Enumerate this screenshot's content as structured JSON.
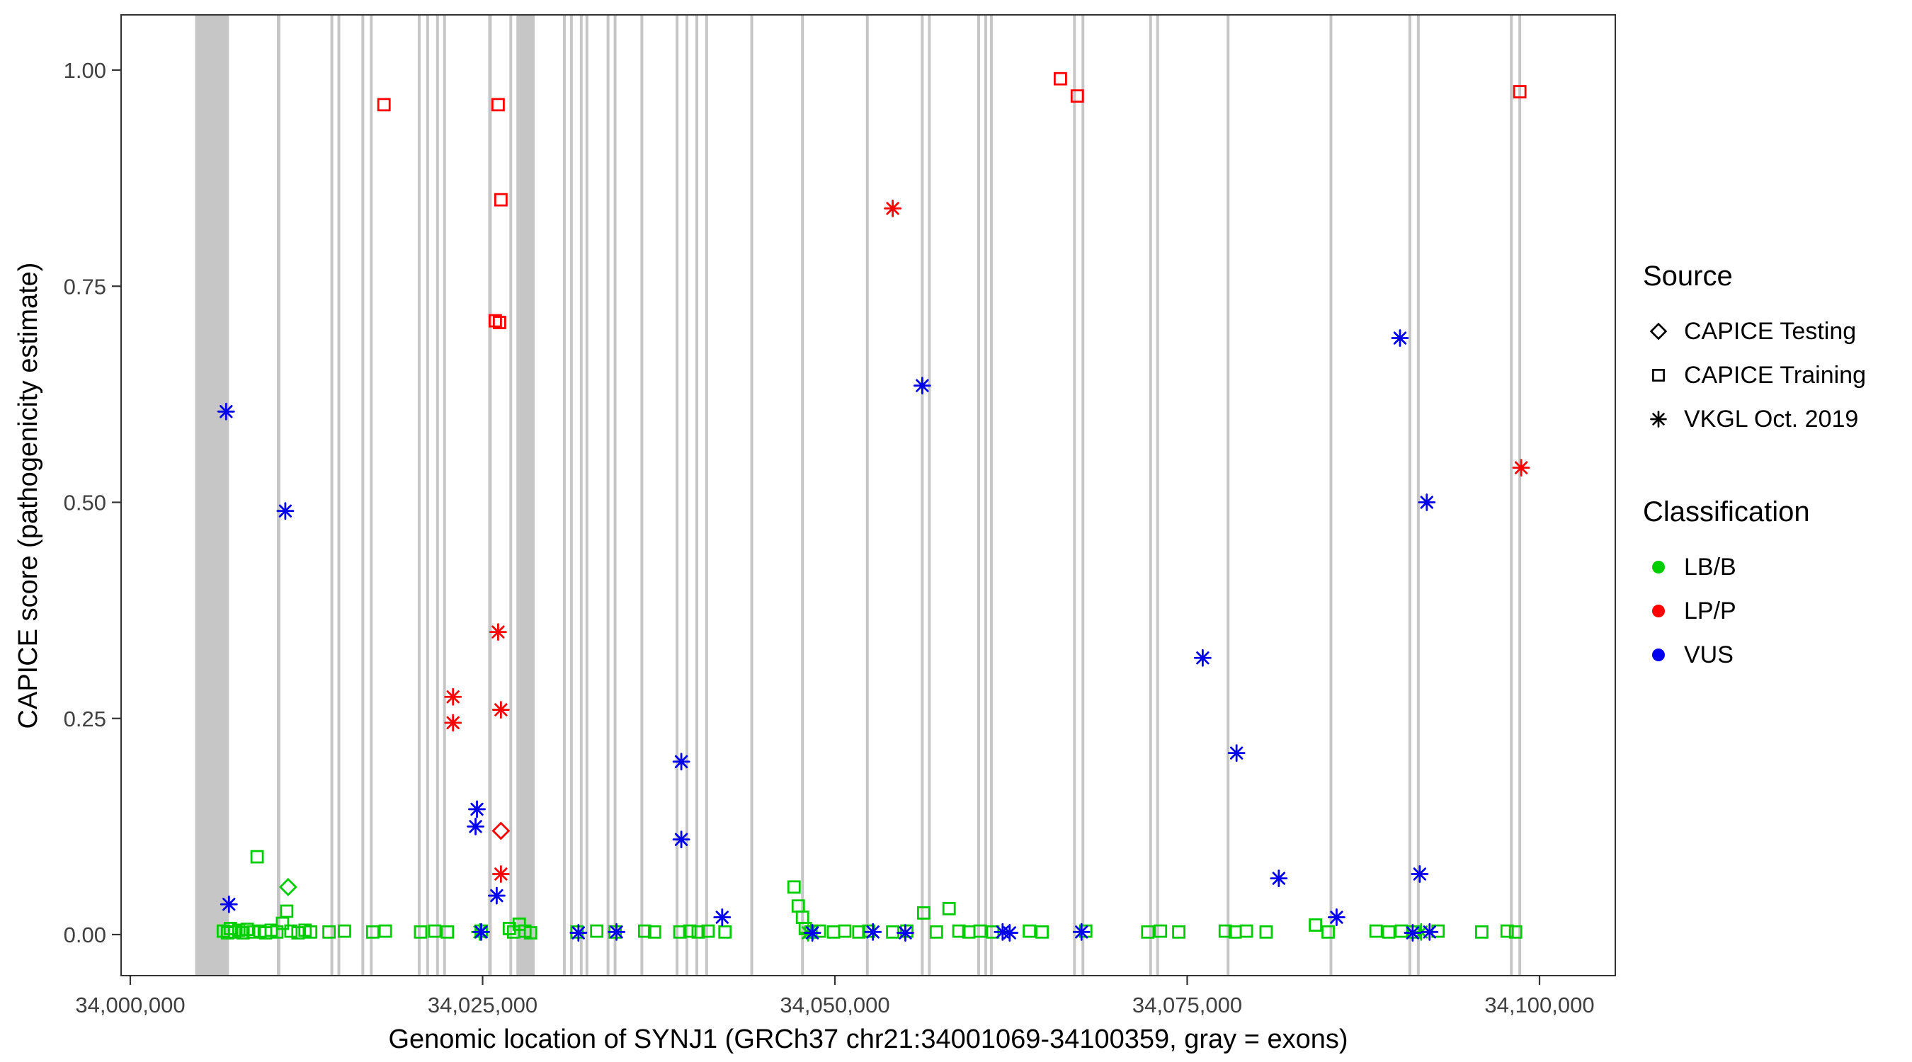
{
  "chart_data": {
    "type": "scatter",
    "title": "",
    "xlabel": "Genomic location of SYNJ1 (GRCh37 chr21:34001069-34100359, gray = exons)",
    "ylabel": "CAPICE score (pathogenicity estimate)",
    "xlim": [
      33999300,
      34105400
    ],
    "ylim": [
      -0.05,
      1.06
    ],
    "x_ticks": [
      34000000,
      34025000,
      34050000,
      34075000,
      34100000
    ],
    "x_tick_labels": [
      "34,000,000",
      "34,025,000",
      "34,050,000",
      "34,075,000",
      "34,100,000"
    ],
    "y_ticks": [
      0,
      0.25,
      0.5,
      0.75,
      1.0
    ],
    "y_tick_labels": [
      "0.00",
      "0.25",
      "0.50",
      "0.75",
      "1.00"
    ],
    "grid": false,
    "legend_position": "right",
    "exon_color": "#c6c6c6",
    "exons": [
      [
        34004600,
        34007000
      ],
      [
        34010400,
        34010650
      ],
      [
        34014200,
        34014400
      ],
      [
        34014700,
        34014900
      ],
      [
        34016400,
        34016600
      ],
      [
        34017000,
        34017200
      ],
      [
        34020400,
        34020600
      ],
      [
        34021000,
        34021200
      ],
      [
        34021700,
        34021900
      ],
      [
        34022200,
        34022400
      ],
      [
        34025400,
        34025650
      ],
      [
        34026900,
        34027100
      ],
      [
        34027400,
        34028700
      ],
      [
        34030700,
        34030900
      ],
      [
        34031200,
        34031400
      ],
      [
        34031900,
        34032100
      ],
      [
        34032300,
        34032500
      ],
      [
        34033800,
        34034000
      ],
      [
        34034300,
        34034500
      ],
      [
        34036200,
        34036400
      ],
      [
        34038700,
        34038900
      ],
      [
        34039400,
        34039600
      ],
      [
        34040100,
        34040300
      ],
      [
        34040800,
        34041000
      ],
      [
        34044000,
        34044200
      ],
      [
        34047600,
        34047800
      ],
      [
        34052200,
        34052400
      ],
      [
        34056100,
        34056300
      ],
      [
        34056600,
        34056800
      ],
      [
        34060100,
        34060300
      ],
      [
        34060600,
        34060800
      ],
      [
        34061000,
        34061200
      ],
      [
        34066900,
        34067100
      ],
      [
        34067500,
        34067700
      ],
      [
        34072300,
        34072500
      ],
      [
        34072800,
        34073000
      ],
      [
        34077800,
        34078000
      ],
      [
        34085100,
        34085300
      ],
      [
        34090700,
        34090900
      ],
      [
        34091300,
        34091500
      ],
      [
        34097900,
        34098100
      ],
      [
        34098500,
        34098700
      ]
    ],
    "series": [
      {
        "source": "CAPICE Testing",
        "classification": "LB/B",
        "shape": "diamond",
        "color": "#00cd00",
        "points": [
          [
            34011200,
            0.055
          ]
        ]
      },
      {
        "source": "CAPICE Testing",
        "classification": "LP/P",
        "shape": "diamond",
        "color": "#ff0000",
        "points": [
          [
            34026300,
            0.12
          ]
        ]
      },
      {
        "source": "CAPICE Training",
        "classification": "LB/B",
        "shape": "square",
        "color": "#00cd00",
        "points": [
          [
            34006600,
            0.004
          ],
          [
            34006900,
            0.002
          ],
          [
            34007100,
            0.007
          ],
          [
            34007400,
            0.003
          ],
          [
            34007700,
            0.005
          ],
          [
            34008000,
            0.002
          ],
          [
            34008300,
            0.006
          ],
          [
            34008700,
            0.003
          ],
          [
            34009000,
            0.09
          ],
          [
            34009200,
            0.004
          ],
          [
            34009600,
            0.002
          ],
          [
            34010000,
            0.005
          ],
          [
            34010400,
            0.003
          ],
          [
            34010800,
            0.013
          ],
          [
            34011100,
            0.027
          ],
          [
            34011400,
            0.004
          ],
          [
            34011900,
            0.002
          ],
          [
            34012400,
            0.005
          ],
          [
            34012800,
            0.003
          ],
          [
            34014100,
            0.003
          ],
          [
            34015200,
            0.004
          ],
          [
            34017200,
            0.003
          ],
          [
            34018100,
            0.004
          ],
          [
            34020600,
            0.003
          ],
          [
            34021600,
            0.004
          ],
          [
            34022500,
            0.003
          ],
          [
            34024900,
            0.004
          ],
          [
            34026900,
            0.007
          ],
          [
            34027200,
            0.003
          ],
          [
            34027600,
            0.012
          ],
          [
            34028000,
            0.004
          ],
          [
            34028400,
            0.002
          ],
          [
            34031700,
            0.003
          ],
          [
            34033100,
            0.004
          ],
          [
            34034400,
            0.003
          ],
          [
            34036500,
            0.004
          ],
          [
            34037200,
            0.003
          ],
          [
            34039000,
            0.003
          ],
          [
            34039700,
            0.004
          ],
          [
            34040300,
            0.003
          ],
          [
            34041000,
            0.004
          ],
          [
            34042200,
            0.003
          ],
          [
            34047100,
            0.055
          ],
          [
            34047400,
            0.033
          ],
          [
            34047700,
            0.02
          ],
          [
            34047900,
            0.007
          ],
          [
            34048300,
            0.003
          ],
          [
            34048900,
            0.004
          ],
          [
            34049900,
            0.003
          ],
          [
            34050700,
            0.004
          ],
          [
            34051700,
            0.003
          ],
          [
            34052400,
            0.004
          ],
          [
            34054100,
            0.003
          ],
          [
            34055100,
            0.004
          ],
          [
            34056300,
            0.025
          ],
          [
            34057200,
            0.003
          ],
          [
            34058100,
            0.03
          ],
          [
            34058800,
            0.004
          ],
          [
            34059500,
            0.003
          ],
          [
            34060300,
            0.004
          ],
          [
            34061200,
            0.003
          ],
          [
            34063800,
            0.004
          ],
          [
            34064700,
            0.003
          ],
          [
            34067800,
            0.004
          ],
          [
            34072200,
            0.003
          ],
          [
            34073100,
            0.004
          ],
          [
            34074400,
            0.003
          ],
          [
            34077700,
            0.004
          ],
          [
            34078400,
            0.003
          ],
          [
            34079200,
            0.004
          ],
          [
            34080600,
            0.003
          ],
          [
            34084100,
            0.011
          ],
          [
            34085000,
            0.003
          ],
          [
            34088400,
            0.004
          ],
          [
            34089300,
            0.003
          ],
          [
            34090200,
            0.004
          ],
          [
            34091100,
            0.003
          ],
          [
            34092800,
            0.004
          ],
          [
            34095900,
            0.003
          ],
          [
            34097700,
            0.004
          ],
          [
            34098300,
            0.003
          ]
        ]
      },
      {
        "source": "CAPICE Training",
        "classification": "LP/P",
        "shape": "square",
        "color": "#ff0000",
        "points": [
          [
            34018000,
            0.96
          ],
          [
            34026100,
            0.96
          ],
          [
            34026300,
            0.85
          ],
          [
            34025900,
            0.71
          ],
          [
            34026200,
            0.708
          ],
          [
            34066000,
            0.99
          ],
          [
            34067200,
            0.97
          ],
          [
            34098600,
            0.975
          ]
        ]
      },
      {
        "source": "VKGL Oct. 2019",
        "classification": "LB/B",
        "shape": "asterisk",
        "color": "#00cd00",
        "points": [
          [
            34024800,
            0.003
          ],
          [
            34048100,
            0.002
          ],
          [
            34091600,
            0.003
          ]
        ]
      },
      {
        "source": "VKGL Oct. 2019",
        "classification": "LP/P",
        "shape": "asterisk",
        "color": "#ff0000",
        "points": [
          [
            34054100,
            0.84
          ],
          [
            34026100,
            0.35
          ],
          [
            34022900,
            0.275
          ],
          [
            34022900,
            0.245
          ],
          [
            34026300,
            0.26
          ],
          [
            34026300,
            0.07
          ],
          [
            34098700,
            0.54
          ]
        ]
      },
      {
        "source": "VKGL Oct. 2019",
        "classification": "VUS",
        "shape": "asterisk",
        "color": "#0000ee",
        "points": [
          [
            34006800,
            0.605
          ],
          [
            34011000,
            0.49
          ],
          [
            34056200,
            0.635
          ],
          [
            34090100,
            0.69
          ],
          [
            34092000,
            0.5
          ],
          [
            34076100,
            0.32
          ],
          [
            34078500,
            0.21
          ],
          [
            34024600,
            0.145
          ],
          [
            34024500,
            0.125
          ],
          [
            34039100,
            0.2
          ],
          [
            34039100,
            0.11
          ],
          [
            34081500,
            0.065
          ],
          [
            34091500,
            0.07
          ],
          [
            34026000,
            0.045
          ],
          [
            34007000,
            0.035
          ],
          [
            34042000,
            0.02
          ],
          [
            34085600,
            0.02
          ],
          [
            34024900,
            0.003
          ],
          [
            34031800,
            0.002
          ],
          [
            34034500,
            0.003
          ],
          [
            34048400,
            0.002
          ],
          [
            34052700,
            0.003
          ],
          [
            34055000,
            0.002
          ],
          [
            34061900,
            0.003
          ],
          [
            34062400,
            0.002
          ],
          [
            34067500,
            0.003
          ],
          [
            34091000,
            0.002
          ],
          [
            34092200,
            0.003
          ]
        ]
      }
    ]
  },
  "legend": {
    "source": {
      "title": "Source",
      "items": [
        {
          "label": "CAPICE Testing",
          "shape": "diamond"
        },
        {
          "label": "CAPICE Training",
          "shape": "square"
        },
        {
          "label": "VKGL Oct. 2019",
          "shape": "asterisk"
        }
      ]
    },
    "classification": {
      "title": "Classification",
      "items": [
        {
          "label": "LB/B",
          "color": "#00cd00"
        },
        {
          "label": "LP/P",
          "color": "#ff0000"
        },
        {
          "label": "VUS",
          "color": "#0000ee"
        }
      ]
    }
  }
}
